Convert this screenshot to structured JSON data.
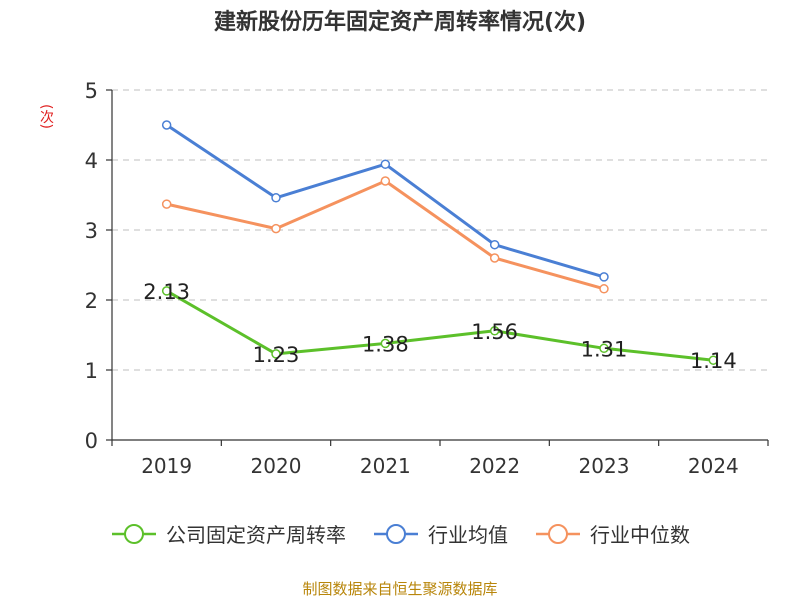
{
  "title": "建新股份历年固定资产周转率情况(次)",
  "source": "制图数据来自恒生聚源数据库",
  "chart_data": {
    "type": "line",
    "title": "建新股份历年固定资产周转率情况(次)",
    "ylabel": "(次)",
    "xlabel": "",
    "categories": [
      "2019",
      "2020",
      "2021",
      "2022",
      "2023",
      "2024"
    ],
    "ylim": [
      0,
      5
    ],
    "yticks": [
      0,
      1,
      2,
      3,
      4,
      5
    ],
    "grid": true,
    "legend_position": "bottom",
    "series": [
      {
        "name": "公司固定资产周转率",
        "color": "#5cc02a",
        "values": [
          2.13,
          1.23,
          1.38,
          1.56,
          1.31,
          1.14
        ],
        "labels": [
          "2.13",
          "1.23",
          "1.38",
          "1.56",
          "1.31",
          "1.14"
        ]
      },
      {
        "name": "行业均值",
        "color": "#4a7fd4",
        "values": [
          4.5,
          3.46,
          3.94,
          2.79,
          2.33,
          null
        ]
      },
      {
        "name": "行业中位数",
        "color": "#f5925e",
        "values": [
          3.37,
          3.02,
          3.7,
          2.6,
          2.16,
          null
        ]
      }
    ]
  }
}
